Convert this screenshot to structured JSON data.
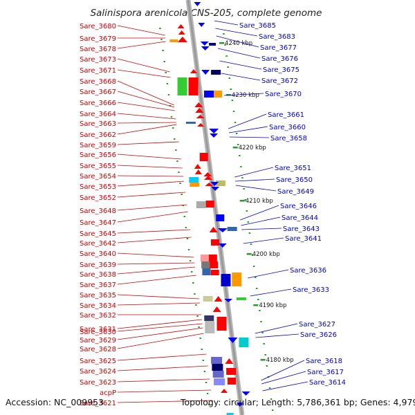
{
  "title": "Salinispora arenicola CNS-205, complete genome",
  "footer": {
    "accession": "Accession: NC_009953",
    "summary": "Topology: circular; Length: 5,786,361 bp; Genes: 4,979"
  },
  "colors": {
    "forward_label": "#cc0000",
    "reverse_label": "#0000cc",
    "forward_feature": "#ff0000",
    "reverse_feature": "#0000ff",
    "backbone": "#9a9a9a",
    "tick": "#2a9a2a"
  },
  "scale_marks": [
    "4240 kbp",
    "4230 kbp",
    "4220 kbp",
    "4210 kbp",
    "4200 kbp",
    "4190 kbp",
    "4180 kbp"
  ],
  "left_labels": [
    "Sare_3680",
    "Sare_3679",
    "Sare_3678",
    "Sare_3673",
    "Sare_3671",
    "Sare_3668",
    "Sare_3667",
    "Sare_3666",
    "Sare_3664",
    "Sare_3663",
    "Sare_3662",
    "Sare_3659",
    "Sare_3656",
    "Sare_3655",
    "Sare_3654",
    "Sare_3653",
    "Sare_3652",
    "Sare_3648",
    "Sare_3647",
    "Sare_3645",
    "Sare_3642",
    "Sare_3640",
    "Sare_3639",
    "Sare_3638",
    "Sare_3637",
    "Sare_3635",
    "Sare_3634",
    "Sare_3632",
    "Sare_3631",
    "Sare_3630",
    "Sare_3629",
    "Sare_3628",
    "Sare_3625",
    "Sare_3624",
    "Sare_3623",
    "acpP",
    "Sare_3621"
  ],
  "right_labels": [
    "Sare_3685",
    "Sare_3683",
    "Sare_3677",
    "Sare_3676",
    "Sare_3675",
    "Sare_3672",
    "Sare_3670",
    "Sare_3661",
    "Sare_3660",
    "Sare_3658",
    "Sare_3651",
    "Sare_3650",
    "Sare_3649",
    "Sare_3646",
    "Sare_3644",
    "Sare_3643",
    "Sare_3641",
    "Sare_3636",
    "Sare_3633",
    "Sare_3627",
    "Sare_3626",
    "Sare_3618",
    "Sare_3617",
    "Sare_3614"
  ]
}
